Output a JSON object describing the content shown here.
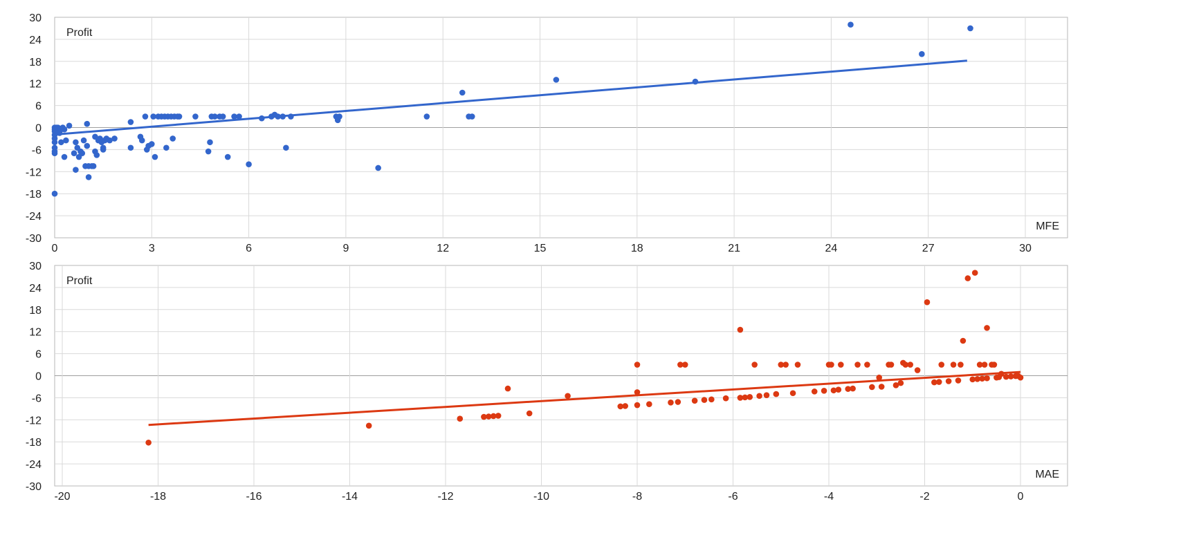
{
  "colors": {
    "mfe": "#3366cc",
    "mae": "#dc3912",
    "grid": "#d9d9d9",
    "frame": "#b7b7b7",
    "text": "#222222"
  },
  "chart_data": [
    {
      "type": "scatter",
      "ylabel": "Profit",
      "xlabel": "MFE",
      "xlim": [
        0,
        30
      ],
      "ylim": [
        -30,
        30
      ],
      "xticks": [
        0,
        3,
        6,
        9,
        12,
        15,
        18,
        21,
        24,
        27,
        30
      ],
      "yticks": [
        30,
        24,
        18,
        12,
        6,
        0,
        -6,
        -12,
        -18,
        -24,
        -30
      ],
      "tick_labels_x": [
        "0",
        "3",
        "6",
        "9",
        "12",
        "15",
        "18",
        "21",
        "24",
        "27",
        "30"
      ],
      "tick_labels_y": [
        "30",
        "24",
        "18",
        "12",
        "6",
        "0",
        "-6",
        "-12",
        "-18",
        "-24",
        "-30"
      ],
      "grid": true,
      "series": [
        {
          "color": "#3366cc",
          "points": [
            [
              0.0,
              0.0
            ],
            [
              0.0,
              -0.5
            ],
            [
              0.0,
              -1.0
            ],
            [
              0.0,
              -2.0
            ],
            [
              0.0,
              -3.0
            ],
            [
              0.0,
              -4.0
            ],
            [
              0.0,
              -5.5
            ],
            [
              0.0,
              -6.5
            ],
            [
              0.0,
              -7.0
            ],
            [
              0.0,
              -18.0
            ],
            [
              0.05,
              0.0
            ],
            [
              0.1,
              -1.0
            ],
            [
              0.1,
              0.0
            ],
            [
              0.15,
              -1.5
            ],
            [
              0.2,
              -0.5
            ],
            [
              0.2,
              -4.0
            ],
            [
              0.25,
              0.0
            ],
            [
              0.3,
              -0.5
            ],
            [
              0.3,
              -8.0
            ],
            [
              0.35,
              -3.5
            ],
            [
              0.45,
              0.5
            ],
            [
              0.6,
              -7.0
            ],
            [
              0.65,
              -4.0
            ],
            [
              0.65,
              -11.5
            ],
            [
              0.7,
              -5.5
            ],
            [
              0.75,
              -8.0
            ],
            [
              0.8,
              -6.5
            ],
            [
              0.85,
              -7.0
            ],
            [
              0.9,
              -3.5
            ],
            [
              0.95,
              -10.5
            ],
            [
              1.0,
              -5.0
            ],
            [
              1.0,
              1.0
            ],
            [
              1.05,
              -10.5
            ],
            [
              1.05,
              -13.5
            ],
            [
              1.15,
              -10.5
            ],
            [
              1.2,
              -10.5
            ],
            [
              1.25,
              -2.5
            ],
            [
              1.25,
              -6.5
            ],
            [
              1.3,
              -7.5
            ],
            [
              1.35,
              -3.5
            ],
            [
              1.4,
              -3.0
            ],
            [
              1.45,
              -4.0
            ],
            [
              1.5,
              -5.5
            ],
            [
              1.5,
              -6.0
            ],
            [
              1.55,
              -3.5
            ],
            [
              1.6,
              -3.0
            ],
            [
              1.7,
              -3.5
            ],
            [
              1.85,
              -3.0
            ],
            [
              2.35,
              1.5
            ],
            [
              2.35,
              -5.5
            ],
            [
              2.65,
              -2.5
            ],
            [
              2.7,
              -3.5
            ],
            [
              2.8,
              3.0
            ],
            [
              2.85,
              -6.0
            ],
            [
              2.9,
              -5.0
            ],
            [
              3.0,
              -4.5
            ],
            [
              3.05,
              3.0
            ],
            [
              3.1,
              -8.0
            ],
            [
              3.2,
              3.0
            ],
            [
              3.3,
              3.0
            ],
            [
              3.4,
              3.0
            ],
            [
              3.45,
              -5.5
            ],
            [
              3.5,
              3.0
            ],
            [
              3.6,
              3.0
            ],
            [
              3.65,
              -3.0
            ],
            [
              3.7,
              3.0
            ],
            [
              3.8,
              3.0
            ],
            [
              3.85,
              3.0
            ],
            [
              4.35,
              3.0
            ],
            [
              4.75,
              -6.5
            ],
            [
              4.8,
              -4.0
            ],
            [
              4.85,
              3.0
            ],
            [
              4.95,
              3.0
            ],
            [
              5.1,
              3.0
            ],
            [
              5.2,
              3.0
            ],
            [
              5.35,
              -8.0
            ],
            [
              5.55,
              3.0
            ],
            [
              5.7,
              3.0
            ],
            [
              6.0,
              -10.0
            ],
            [
              6.4,
              2.5
            ],
            [
              6.7,
              3.0
            ],
            [
              6.8,
              3.5
            ],
            [
              6.9,
              3.0
            ],
            [
              7.05,
              3.0
            ],
            [
              7.15,
              -5.5
            ],
            [
              7.3,
              3.0
            ],
            [
              8.7,
              3.0
            ],
            [
              8.75,
              2.0
            ],
            [
              8.8,
              3.0
            ],
            [
              10.0,
              -11.0
            ],
            [
              11.5,
              3.0
            ],
            [
              12.6,
              9.5
            ],
            [
              12.8,
              3.0
            ],
            [
              12.9,
              3.0
            ],
            [
              15.5,
              13.0
            ],
            [
              19.8,
              12.5
            ],
            [
              24.6,
              28.0
            ],
            [
              26.8,
              20.0
            ],
            [
              28.3,
              27.0
            ]
          ]
        }
      ],
      "trendline": {
        "x": [
          0,
          28.2
        ],
        "y": [
          -1.9,
          18.2
        ]
      }
    },
    {
      "type": "scatter",
      "ylabel": "Profit",
      "xlabel": "MAE",
      "xlim": [
        -20,
        0
      ],
      "ylim": [
        -30,
        30
      ],
      "xticks": [
        -20,
        -18,
        -16,
        -14,
        -12,
        -10,
        -8,
        -6,
        -4,
        -2,
        0
      ],
      "yticks": [
        30,
        24,
        18,
        12,
        6,
        0,
        -6,
        -12,
        -18,
        -24,
        -30
      ],
      "tick_labels_x": [
        "-20",
        "-18",
        "-16",
        "-14",
        "-12",
        "-10",
        "-8",
        "-6",
        "-4",
        "-2",
        "0"
      ],
      "tick_labels_y": [
        "30",
        "24",
        "18",
        "12",
        "6",
        "0",
        "-6",
        "-12",
        "-18",
        "-24",
        "-30"
      ],
      "grid": true,
      "series": [
        {
          "color": "#dc3912",
          "points": [
            [
              -18.2,
              -18.2
            ],
            [
              -13.6,
              -13.6
            ],
            [
              -11.7,
              -11.7
            ],
            [
              -11.2,
              -11.2
            ],
            [
              -11.1,
              -11.1
            ],
            [
              -11.0,
              -11.0
            ],
            [
              -10.9,
              -10.9
            ],
            [
              -10.7,
              -3.5
            ],
            [
              -10.25,
              -10.25
            ],
            [
              -9.45,
              -5.5
            ],
            [
              -8.35,
              -8.35
            ],
            [
              -8.25,
              -8.25
            ],
            [
              -8.0,
              -8.0
            ],
            [
              -8.0,
              -4.5
            ],
            [
              -8.0,
              3.0
            ],
            [
              -7.75,
              -7.75
            ],
            [
              -7.3,
              -7.3
            ],
            [
              -7.15,
              -7.15
            ],
            [
              -7.1,
              3.0
            ],
            [
              -7.0,
              3.0
            ],
            [
              -6.8,
              -6.8
            ],
            [
              -6.6,
              -6.6
            ],
            [
              -6.45,
              -6.45
            ],
            [
              -6.15,
              -6.15
            ],
            [
              -5.85,
              12.5
            ],
            [
              -5.85,
              -6.0
            ],
            [
              -5.75,
              -5.9
            ],
            [
              -5.65,
              -5.8
            ],
            [
              -5.55,
              3.0
            ],
            [
              -5.45,
              -5.5
            ],
            [
              -5.3,
              -5.3
            ],
            [
              -5.1,
              -5.0
            ],
            [
              -5.0,
              3.0
            ],
            [
              -4.9,
              3.0
            ],
            [
              -4.75,
              -4.75
            ],
            [
              -4.65,
              3.0
            ],
            [
              -4.3,
              -4.3
            ],
            [
              -4.1,
              -4.1
            ],
            [
              -4.0,
              3.0
            ],
            [
              -3.95,
              3.0
            ],
            [
              -3.9,
              -4.0
            ],
            [
              -3.8,
              -3.8
            ],
            [
              -3.75,
              3.0
            ],
            [
              -3.6,
              -3.6
            ],
            [
              -3.5,
              -3.5
            ],
            [
              -3.4,
              3.0
            ],
            [
              -3.2,
              3.0
            ],
            [
              -3.1,
              -3.1
            ],
            [
              -2.95,
              -0.5
            ],
            [
              -2.9,
              -3.0
            ],
            [
              -2.75,
              3.0
            ],
            [
              -2.7,
              3.0
            ],
            [
              -2.6,
              -2.6
            ],
            [
              -2.5,
              -2.0
            ],
            [
              -2.45,
              3.5
            ],
            [
              -2.4,
              3.0
            ],
            [
              -2.3,
              3.0
            ],
            [
              -2.15,
              1.5
            ],
            [
              -1.95,
              20.0
            ],
            [
              -1.8,
              -1.8
            ],
            [
              -1.7,
              -1.7
            ],
            [
              -1.65,
              3.0
            ],
            [
              -1.5,
              -1.5
            ],
            [
              -1.4,
              3.0
            ],
            [
              -1.3,
              -1.3
            ],
            [
              -1.25,
              3.0
            ],
            [
              -1.2,
              9.5
            ],
            [
              -1.1,
              26.5
            ],
            [
              -1.0,
              -1.0
            ],
            [
              -0.95,
              28.0
            ],
            [
              -0.9,
              -0.9
            ],
            [
              -0.85,
              3.0
            ],
            [
              -0.8,
              -0.8
            ],
            [
              -0.75,
              3.0
            ],
            [
              -0.7,
              -0.7
            ],
            [
              -0.7,
              13.0
            ],
            [
              -0.6,
              3.0
            ],
            [
              -0.55,
              3.0
            ],
            [
              -0.5,
              -0.5
            ],
            [
              -0.45,
              -0.4
            ],
            [
              -0.4,
              0.5
            ],
            [
              -0.3,
              -0.3
            ],
            [
              -0.2,
              -0.2
            ],
            [
              -0.1,
              -0.1
            ],
            [
              -0.05,
              -0.05
            ],
            [
              0.0,
              -0.5
            ]
          ]
        }
      ],
      "trendline": {
        "x": [
          -18.2,
          0
        ],
        "y": [
          -13.4,
          1.0
        ]
      }
    }
  ]
}
